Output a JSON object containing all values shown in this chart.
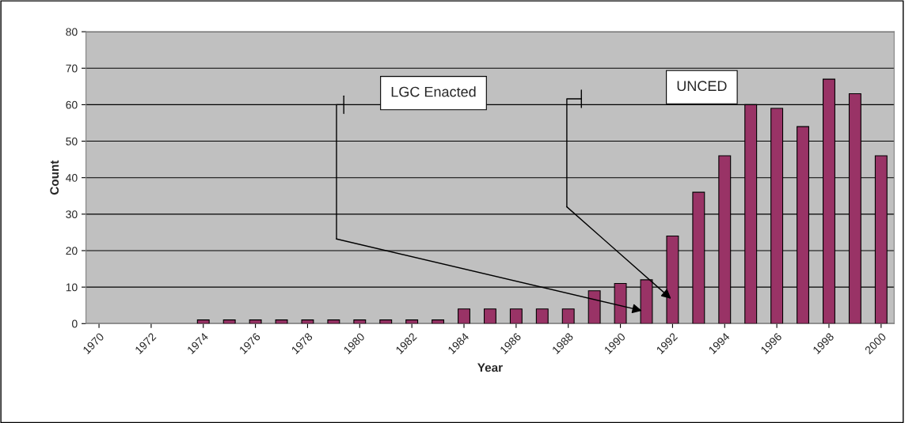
{
  "chart_data": {
    "type": "bar",
    "xlabel": "Year",
    "ylabel": "Count",
    "x": [
      1970,
      1971,
      1972,
      1973,
      1974,
      1975,
      1976,
      1977,
      1978,
      1979,
      1980,
      1981,
      1982,
      1983,
      1984,
      1985,
      1986,
      1987,
      1988,
      1989,
      1990,
      1991,
      1992,
      1993,
      1994,
      1995,
      1996,
      1997,
      1998,
      1999,
      2000
    ],
    "values": [
      0,
      0,
      0,
      0,
      1,
      1,
      1,
      1,
      1,
      1,
      1,
      1,
      1,
      1,
      4,
      4,
      4,
      4,
      4,
      9,
      11,
      12,
      24,
      36,
      46,
      60,
      59,
      54,
      67,
      63,
      46
    ],
    "color": "#993366",
    "xlim": [
      1969.5,
      2000.5
    ],
    "xticks": [
      1970,
      1972,
      1974,
      1976,
      1978,
      1980,
      1982,
      1984,
      1986,
      1988,
      1990,
      1992,
      1994,
      1996,
      1998,
      2000
    ],
    "ylim": [
      0,
      80
    ],
    "yticks": [
      0,
      10,
      20,
      30,
      40,
      50,
      60,
      70,
      80
    ],
    "grid": "y",
    "legend": false,
    "annotations": [
      "LGC Enacted",
      "UNCED"
    ]
  }
}
